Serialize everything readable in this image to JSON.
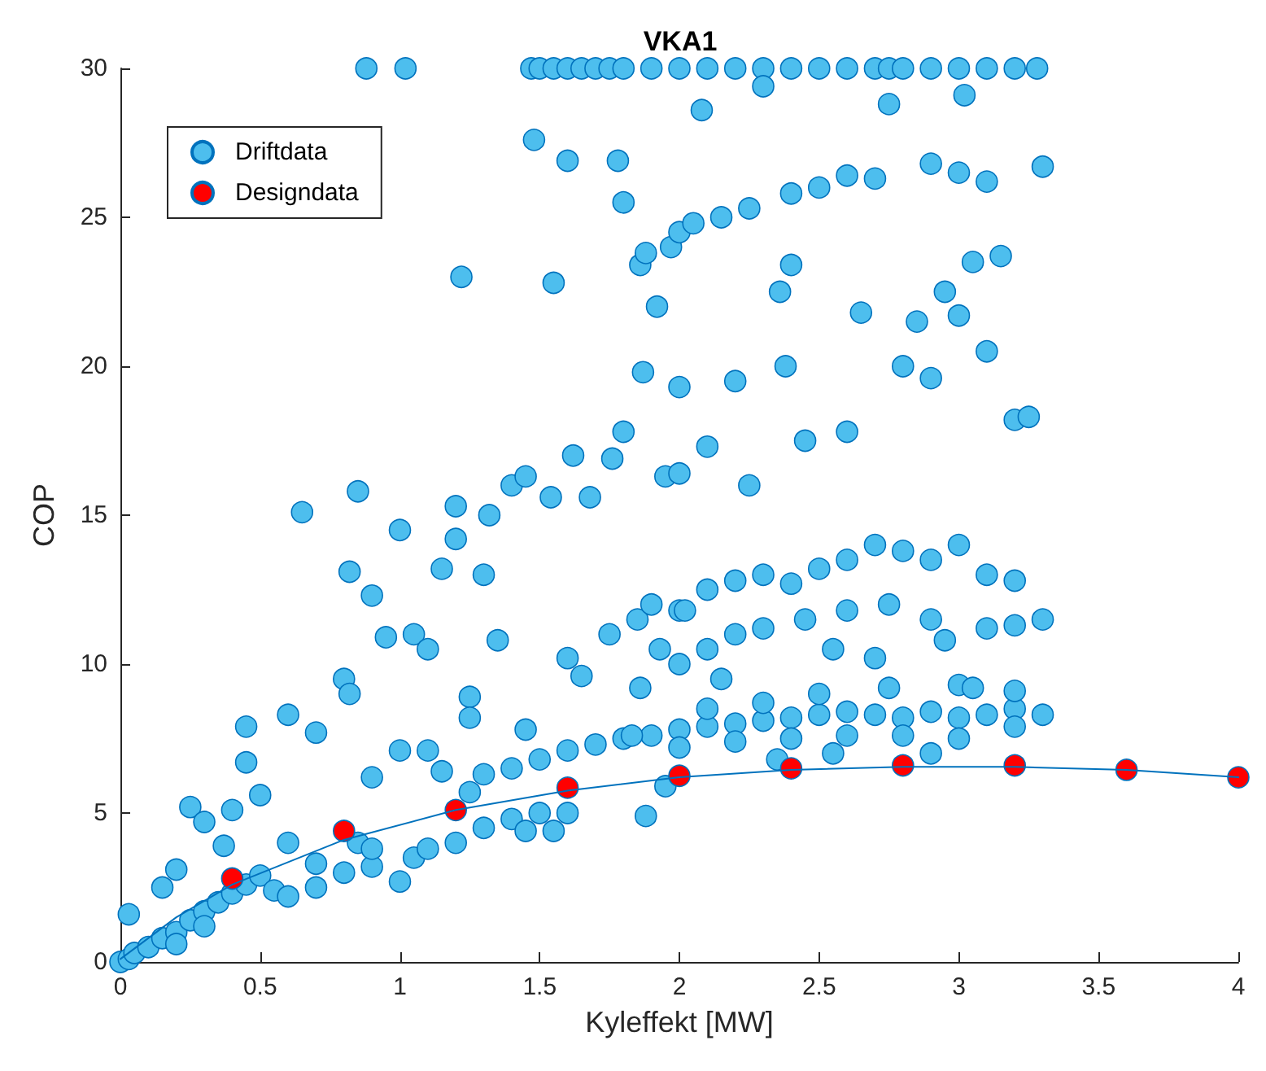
{
  "chart_data": {
    "type": "scatter",
    "title": "VKA1",
    "xlabel": "Kyleffekt [MW]",
    "ylabel": "COP",
    "xlim": [
      0,
      4
    ],
    "ylim": [
      0,
      30
    ],
    "xticks": [
      0,
      0.5,
      1,
      1.5,
      2,
      2.5,
      3,
      3.5,
      4
    ],
    "yticks": [
      0,
      5,
      10,
      15,
      20,
      25,
      30
    ],
    "grid": false,
    "legend": "top left",
    "marker": "circle",
    "series": [
      {
        "name": "Driftdata",
        "color": "#4dbeee",
        "x": [
          0.88,
          1.02,
          1.47,
          1.5,
          1.55,
          1.6,
          1.65,
          1.7,
          1.75,
          1.8,
          1.9,
          2.0,
          2.1,
          2.2,
          2.3,
          2.4,
          2.5,
          2.6,
          2.7,
          2.75,
          2.8,
          2.9,
          3.0,
          3.1,
          3.2,
          3.28,
          1.22,
          1.48,
          1.55,
          1.6,
          1.78,
          1.8,
          1.86,
          1.88,
          1.92,
          1.97,
          2.0,
          2.05,
          2.08,
          2.15,
          2.25,
          2.3,
          2.4,
          2.5,
          2.6,
          2.7,
          2.75,
          2.9,
          3.0,
          3.02,
          3.1,
          3.3,
          1.87,
          2.0,
          1.76,
          1.62,
          1.68,
          1.54,
          1.4,
          1.45,
          1.8,
          1.95,
          2.0,
          2.1,
          2.25,
          2.2,
          2.38,
          2.45,
          2.6,
          2.65,
          2.8,
          2.85,
          2.9,
          3.0,
          3.1,
          3.2,
          3.25,
          3.05,
          3.15,
          2.95,
          2.36,
          2.4,
          1.85,
          1.9,
          2.0,
          2.1,
          2.2,
          2.3,
          2.4,
          2.5,
          2.6,
          2.7,
          2.8,
          2.9,
          3.0,
          3.1,
          3.2,
          3.3,
          2.0,
          2.1,
          2.2,
          2.3,
          2.45,
          2.6,
          2.75,
          2.9,
          3.1,
          2.55,
          2.7,
          2.95,
          3.2,
          1.75,
          1.6,
          1.65,
          1.86,
          1.93,
          2.02,
          3.0,
          2.15,
          1.3,
          1.4,
          1.5,
          1.6,
          1.7,
          1.8,
          1.9,
          2.0,
          2.1,
          2.2,
          2.3,
          2.4,
          2.5,
          2.6,
          2.7,
          2.8,
          2.9,
          3.0,
          3.1,
          3.2,
          3.3,
          2.0,
          2.2,
          2.4,
          2.6,
          2.8,
          3.0,
          3.2,
          2.5,
          2.75,
          3.05,
          3.2,
          2.3,
          2.1,
          1.95,
          1.88,
          1.83,
          2.35,
          2.55,
          2.9,
          1.45,
          0,
          0.03,
          0.05,
          0.1,
          0.15,
          0.2,
          0.25,
          0.3,
          0.35,
          0.4,
          0.45,
          0.5,
          0.55,
          0.6,
          0.7,
          0.8,
          0.9,
          1.0,
          1.05,
          1.1,
          1.2,
          1.3,
          1.4,
          1.5,
          0.03,
          0.15,
          0.2,
          0.25,
          0.3,
          0.37,
          0.4,
          0.45,
          0.45,
          0.5,
          0.6,
          0.7,
          0.8,
          0.82,
          0.82,
          0.65,
          0.85,
          0.9,
          0.95,
          1.0,
          1.05,
          1.1,
          1.15,
          1.2,
          1.2,
          1.3,
          1.32,
          1.35,
          1.25,
          1.25,
          1.0,
          1.1,
          0.9,
          1.45,
          1.6,
          1.55,
          0.6,
          0.7,
          0.85,
          0.9,
          1.25,
          1.15,
          0.2,
          0.3
        ],
        "values": [
          30,
          30,
          30,
          30,
          30,
          30,
          30,
          30,
          30,
          30,
          30,
          30,
          30,
          30,
          30,
          30,
          30,
          30,
          30,
          30,
          30,
          30,
          30,
          30,
          30,
          30,
          23,
          27.6,
          22.8,
          26.9,
          26.9,
          25.5,
          23.4,
          23.8,
          22,
          24,
          24.5,
          24.8,
          28.6,
          25,
          25.3,
          29.4,
          25.8,
          26,
          26.4,
          26.3,
          28.8,
          26.8,
          26.5,
          29.1,
          26.2,
          26.7,
          19.8,
          19.3,
          16.9,
          17,
          15.6,
          15.6,
          16,
          16.3,
          17.8,
          16.3,
          16.4,
          17.3,
          16,
          19.5,
          20,
          17.5,
          17.8,
          21.8,
          20,
          21.5,
          19.6,
          21.7,
          20.5,
          18.2,
          18.3,
          23.5,
          23.7,
          22.5,
          22.5,
          23.4,
          11.5,
          12,
          11.8,
          12.5,
          12.8,
          13,
          12.7,
          13.2,
          13.5,
          14,
          13.8,
          13.5,
          14,
          13,
          12.8,
          11.5,
          10,
          10.5,
          11,
          11.2,
          11.5,
          11.8,
          12,
          11.5,
          11.2,
          10.5,
          10.2,
          10.8,
          11.3,
          11,
          10.2,
          9.6,
          9.2,
          10.5,
          11.8,
          9.3,
          9.5,
          6.3,
          6.5,
          6.8,
          7.1,
          7.3,
          7.5,
          7.6,
          7.8,
          7.9,
          8.0,
          8.1,
          8.2,
          8.3,
          8.4,
          8.3,
          8.2,
          8.4,
          8.2,
          8.3,
          8.5,
          8.3,
          7.2,
          7.4,
          7.5,
          7.6,
          7.6,
          7.5,
          7.9,
          9.0,
          9.2,
          9.2,
          9.1,
          8.7,
          8.5,
          5.9,
          4.9,
          7.6,
          6.8,
          7.0,
          7.0,
          7.8,
          0,
          0.1,
          0.3,
          0.5,
          0.8,
          1.0,
          1.4,
          1.7,
          2.0,
          2.3,
          2.6,
          2.9,
          2.4,
          2.2,
          2.5,
          3.0,
          3.2,
          2.7,
          3.5,
          3.8,
          4.0,
          4.5,
          4.8,
          5.0,
          1.6,
          2.5,
          3.1,
          5.2,
          4.7,
          3.9,
          5.1,
          6.7,
          7.9,
          5.6,
          8.3,
          7.7,
          9.5,
          9.0,
          13.1,
          15.1,
          15.8,
          12.3,
          10.9,
          14.5,
          11.0,
          10.5,
          13.2,
          15.3,
          14.2,
          13.0,
          15,
          10.8,
          8.9,
          8.2,
          7.1,
          7.1,
          6.2,
          4.4,
          5.0,
          4.4,
          4.0,
          3.3,
          4.0,
          3.8,
          5.7,
          6.4,
          0.6,
          1.2
        ]
      },
      {
        "name": "Designdata",
        "color": "#ff0000",
        "x": [
          0.4,
          0.8,
          1.2,
          1.6,
          2.0,
          2.4,
          2.8,
          3.2,
          3.6,
          4.0
        ],
        "values": [
          2.8,
          4.4,
          5.1,
          5.85,
          6.25,
          6.5,
          6.6,
          6.6,
          6.45,
          6.2
        ]
      },
      {
        "type": "line",
        "color": "#0072bd",
        "line_style": "solid",
        "marker": "none",
        "x": [
          0,
          0.2,
          0.4,
          0.8,
          1.2,
          1.6,
          2.0,
          2.4,
          2.8,
          3.2,
          3.6,
          4.0
        ],
        "values": [
          0.1,
          1.5,
          2.6,
          4.1,
          5.1,
          5.75,
          6.2,
          6.45,
          6.55,
          6.55,
          6.45,
          6.2
        ]
      }
    ]
  }
}
